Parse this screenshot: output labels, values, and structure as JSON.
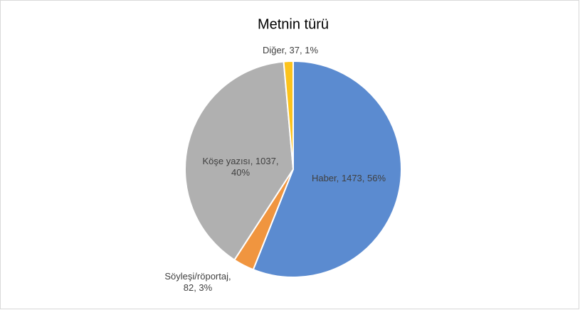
{
  "chart_data": {
    "type": "pie",
    "title": "Metnin türü",
    "categories": [
      "Haber",
      "Söyleşi/röportaj",
      "Köşe yazısı",
      "Diğer"
    ],
    "values": [
      1473,
      82,
      1037,
      37
    ],
    "value_labels": [
      [
        "Haber, 1473, 56%"
      ],
      [
        "Söyleşi/röportaj,",
        "82, 3%"
      ],
      [
        "Köşe yazısı, 1037,",
        "40%"
      ],
      [
        "Diğer, 37, 1%"
      ]
    ],
    "colors": [
      "#5b8bd0",
      "#f0953f",
      "#b0b0b0",
      "#fcc31c"
    ]
  }
}
